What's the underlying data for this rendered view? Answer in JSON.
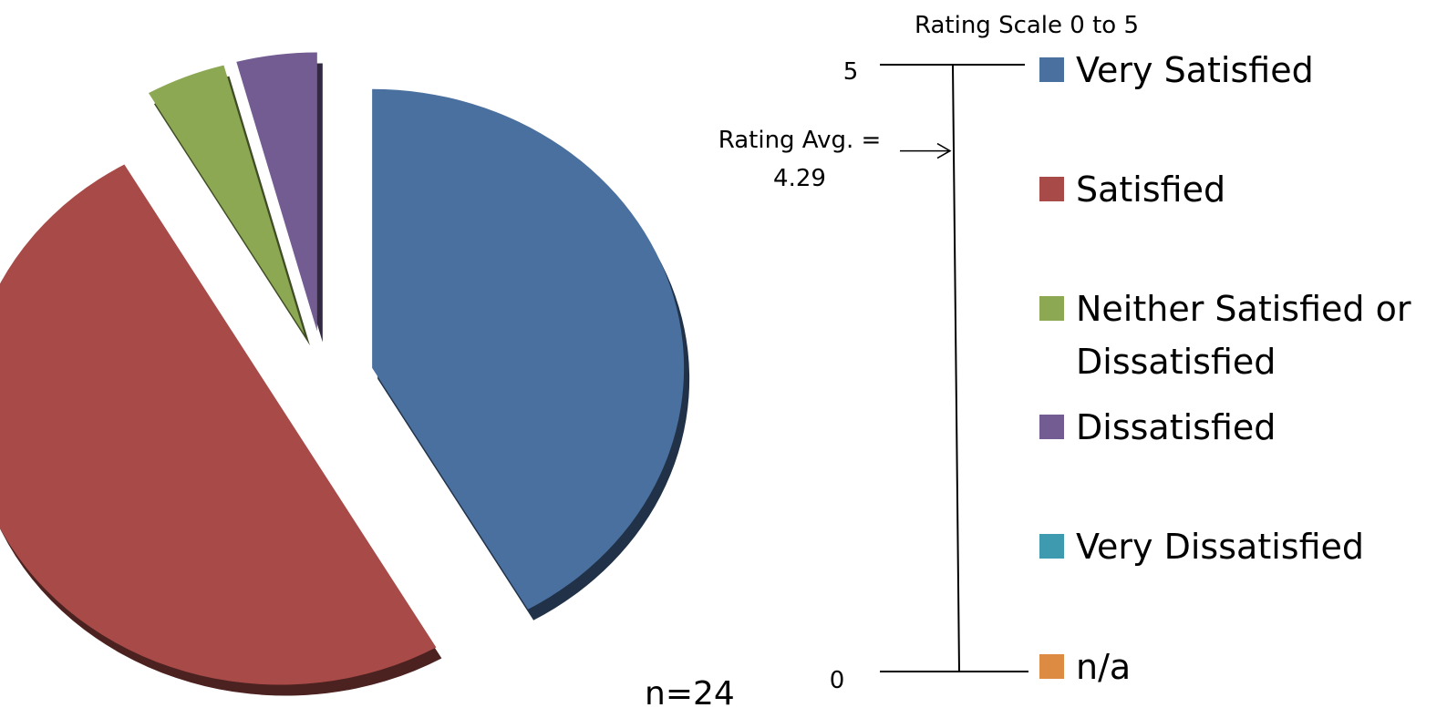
{
  "chart_data": {
    "type": "pie",
    "style": "3d-exploded",
    "categories": [
      "Very Satisfied",
      "Satisfied",
      "Neither Satisfied or Dissatisfied",
      "Dissatisfied",
      "Very Dissatisfied",
      "n/a"
    ],
    "values": [
      10,
      12,
      1,
      1,
      0,
      0
    ],
    "colors": [
      "#4A70A0",
      "#A84B48",
      "#8CA852",
      "#735C92",
      "#3E9AAF",
      "#DD8A42"
    ],
    "legend_position": "right",
    "sample_size_label": "n=24"
  },
  "rating_scale": {
    "title": "Rating Scale 0 to 5",
    "max_label": "5",
    "min_label": "0",
    "min": 0,
    "max": 5,
    "average": 4.29,
    "average_label_line1": "Rating Avg. =",
    "average_label_line2": "4.29"
  },
  "legend": {
    "items": [
      {
        "lines": [
          "Very Satisfied"
        ],
        "color": "#4A70A0"
      },
      {
        "lines": [
          "Satisfied"
        ],
        "color": "#A84B48"
      },
      {
        "lines": [
          "Neither Satisfied or",
          "Dissatisfied"
        ],
        "color": "#8CA852"
      },
      {
        "lines": [
          "Dissatisfied"
        ],
        "color": "#735C92"
      },
      {
        "lines": [
          "Very Dissatisfied"
        ],
        "color": "#3E9AAF"
      },
      {
        "lines": [
          "n/a"
        ],
        "color": "#DD8A42"
      }
    ]
  }
}
